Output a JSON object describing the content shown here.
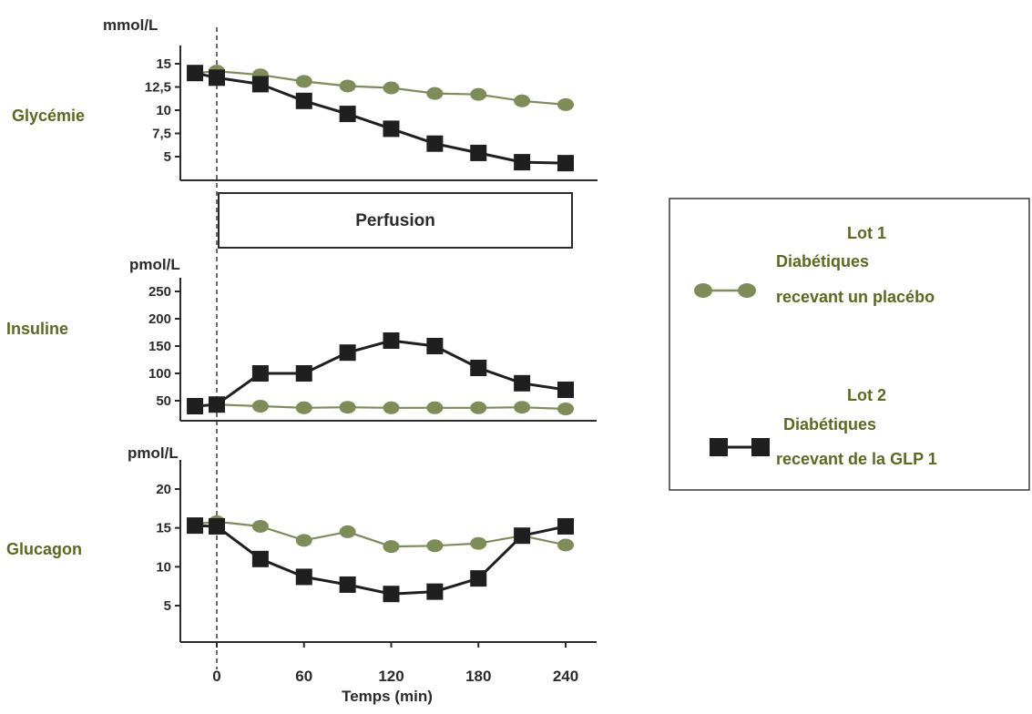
{
  "chart_data": [
    {
      "type": "line",
      "title": "Glycémie",
      "unit": "mmol/L",
      "ticks": [
        5,
        7.5,
        10,
        12.5,
        15
      ],
      "tick_labels": [
        "5",
        "7,5",
        "10",
        "12,5",
        "15"
      ],
      "ylim": [
        2.5,
        16.5
      ],
      "series": [
        {
          "key": "lot1",
          "x": [
            -15,
            0,
            30,
            60,
            90,
            120,
            150,
            180,
            210,
            240
          ],
          "values": [
            14,
            14.2,
            13.8,
            13.1,
            12.6,
            12.4,
            11.8,
            11.7,
            11,
            10.6
          ]
        },
        {
          "key": "lot2",
          "x": [
            -15,
            0,
            30,
            60,
            90,
            120,
            150,
            180,
            210,
            240
          ],
          "values": [
            14,
            13.5,
            12.8,
            11,
            9.6,
            8,
            6.4,
            5.4,
            4.4,
            4.3
          ]
        }
      ]
    },
    {
      "type": "line",
      "title": "Insuline",
      "unit": "pmol/L",
      "ticks": [
        50,
        100,
        150,
        200,
        250
      ],
      "tick_labels": [
        "50",
        "100",
        "150",
        "200",
        "250"
      ],
      "ylim": [
        10,
        270
      ],
      "series": [
        {
          "key": "lot1",
          "x": [
            -15,
            0,
            30,
            60,
            90,
            120,
            150,
            180,
            210,
            240
          ],
          "values": [
            40,
            43,
            40,
            37,
            38,
            37,
            37,
            37,
            38,
            35
          ]
        },
        {
          "key": "lot2",
          "x": [
            -15,
            0,
            30,
            60,
            90,
            120,
            150,
            180,
            210,
            240
          ],
          "values": [
            40,
            43,
            100,
            100,
            138,
            160,
            150,
            110,
            82,
            70
          ]
        }
      ]
    },
    {
      "type": "line",
      "title": "Glucagon",
      "unit": "pmol/L",
      "ticks": [
        5,
        10,
        15,
        20
      ],
      "tick_labels": [
        "5",
        "10",
        "15",
        "20"
      ],
      "ylim": [
        0,
        24
      ],
      "series": [
        {
          "key": "lot1",
          "x": [
            -15,
            0,
            30,
            60,
            90,
            120,
            150,
            180,
            210,
            240
          ],
          "values": [
            15.5,
            15.8,
            15.2,
            13.4,
            14.5,
            12.6,
            12.7,
            13,
            14,
            12.8
          ]
        },
        {
          "key": "lot2",
          "x": [
            -15,
            0,
            30,
            60,
            90,
            120,
            150,
            180,
            210,
            240
          ],
          "values": [
            15.3,
            15.2,
            11,
            8.7,
            7.7,
            6.5,
            6.8,
            8.5,
            14,
            15.2
          ]
        }
      ]
    }
  ],
  "x_axis": {
    "label": "Temps (min)",
    "ticks": [
      0,
      60,
      120,
      180,
      240
    ],
    "tick_labels": [
      "0",
      "60",
      "120",
      "180",
      "240"
    ],
    "xlim": [
      -30,
      255
    ]
  },
  "perfusion_label": "Perfusion",
  "legend": {
    "lot1_title": "Lot 1",
    "lot1_desc_line1": "Diabétiques",
    "lot1_desc_line2": "recevant un placébo",
    "lot2_title": "Lot 2",
    "lot2_desc_line1": "Diabétiques",
    "lot2_desc_line2": "recevant de la GLP 1"
  },
  "colors": {
    "lot1": "#7e8c57",
    "lot2": "#1f1f1f",
    "label_green": "#5a6a1e"
  },
  "markers": {
    "lot1": "circle",
    "lot2": "square"
  }
}
